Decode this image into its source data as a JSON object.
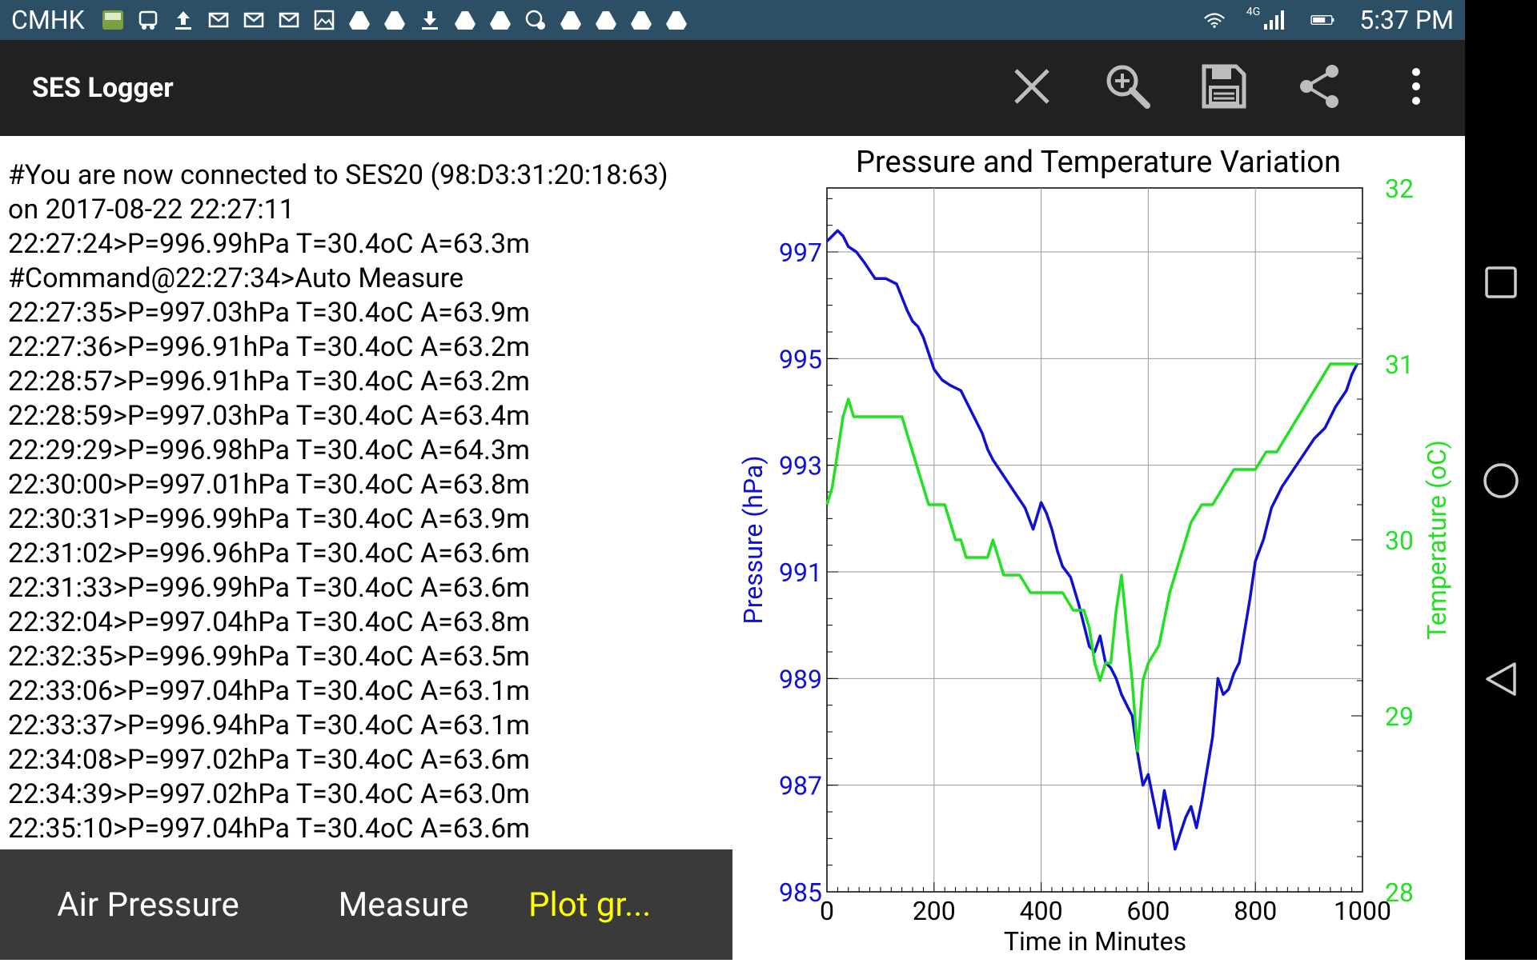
{
  "status_bar": {
    "carrier": "CMHK",
    "time": "5:37 PM",
    "network": "4G",
    "icons": [
      "basic4android-icon",
      "bus-icon",
      "upload-icon",
      "mail-icon",
      "mail-icon",
      "mail-icon",
      "image-icon",
      "drive-icon",
      "drive-icon",
      "download-icon",
      "drive-icon",
      "drive-icon",
      "photos-icon",
      "drive-icon",
      "drive-icon",
      "drive-icon",
      "drive-icon"
    ]
  },
  "app_bar": {
    "title": "SES Logger",
    "actions": [
      "close-icon",
      "zoom-icon",
      "save-icon",
      "share-icon",
      "overflow-menu-icon"
    ]
  },
  "log_lines": [
    "#You are now connected to SES20 (98:D3:31:20:18:63)",
    "on 2017-08-22 22:27:11",
    "22:27:24>P=996.99hPa T=30.4oC A=63.3m",
    "#Command@22:27:34>Auto Measure",
    "22:27:35>P=997.03hPa T=30.4oC A=63.9m",
    "22:27:36>P=996.91hPa T=30.4oC A=63.2m",
    "22:28:57>P=996.91hPa T=30.4oC A=63.2m",
    "22:28:59>P=997.03hPa T=30.4oC A=63.4m",
    "22:29:29>P=996.98hPa T=30.4oC A=64.3m",
    "22:30:00>P=997.01hPa T=30.4oC A=63.8m",
    "22:30:31>P=996.99hPa T=30.4oC A=63.9m",
    "22:31:02>P=996.96hPa T=30.4oC A=63.6m",
    "22:31:33>P=996.99hPa T=30.4oC A=63.6m",
    "22:32:04>P=997.04hPa T=30.4oC A=63.8m",
    "22:32:35>P=996.99hPa T=30.4oC A=63.5m",
    "22:33:06>P=997.04hPa T=30.4oC A=63.1m",
    "22:33:37>P=996.94hPa T=30.4oC A=63.1m",
    "22:34:08>P=997.02hPa T=30.4oC A=63.6m",
    "22:34:39>P=997.02hPa T=30.4oC A=63.0m",
    "22:35:10>P=997.04hPa T=30.4oC A=63.6m"
  ],
  "bottom_nav": {
    "items": [
      "Air Pressure",
      "Measure",
      "Plot gr..."
    ],
    "active_index": 2
  },
  "colors": {
    "pressure": "#1010d0",
    "temperature": "#22e022",
    "active_tab": "#ffff00"
  },
  "chart_data": {
    "type": "line",
    "title": "Pressure and Temperature Variation",
    "xlabel": "Time in Minutes",
    "ylabel": "Pressure (hPa)",
    "y2label": "Temperature (oC)",
    "xlim": [
      0,
      1000
    ],
    "ylim": [
      985,
      998.2
    ],
    "y2lim": [
      28,
      32
    ],
    "x_ticks": [
      0,
      200,
      400,
      600,
      800,
      1000
    ],
    "y_ticks": [
      985,
      987,
      989,
      991,
      993,
      995,
      997
    ],
    "y2_ticks": [
      28,
      29,
      30,
      31,
      32
    ],
    "grid": true,
    "series": [
      {
        "name": "Pressure (hPa)",
        "axis": "left",
        "x": [
          0,
          10,
          20,
          30,
          40,
          55,
          70,
          90,
          110,
          130,
          150,
          160,
          170,
          180,
          190,
          200,
          215,
          230,
          250,
          270,
          290,
          300,
          310,
          330,
          350,
          370,
          385,
          400,
          410,
          420,
          430,
          440,
          455,
          470,
          480,
          490,
          500,
          510,
          520,
          530,
          540,
          550,
          560,
          570,
          580,
          590,
          600,
          610,
          620,
          630,
          640,
          650,
          660,
          670,
          680,
          690,
          700,
          710,
          720,
          730,
          740,
          750,
          760,
          770,
          780,
          790,
          800,
          815,
          830,
          850,
          870,
          890,
          910,
          930,
          950,
          970,
          980,
          990
        ],
        "y": [
          997.2,
          997.3,
          997.4,
          997.3,
          997.1,
          997.0,
          996.8,
          996.5,
          996.5,
          996.4,
          995.9,
          995.7,
          995.6,
          995.4,
          995.1,
          994.8,
          994.6,
          994.5,
          994.4,
          994.0,
          993.6,
          993.3,
          993.1,
          992.8,
          992.5,
          992.2,
          991.8,
          992.3,
          992.1,
          991.8,
          991.4,
          991.1,
          990.9,
          990.4,
          990.0,
          989.6,
          989.5,
          989.8,
          989.3,
          989.2,
          989.0,
          988.7,
          988.5,
          988.3,
          987.6,
          987.0,
          987.2,
          986.7,
          986.2,
          986.9,
          986.4,
          985.8,
          986.1,
          986.4,
          986.6,
          986.2,
          986.7,
          987.3,
          987.9,
          989.0,
          988.7,
          988.8,
          989.1,
          989.3,
          989.9,
          990.5,
          991.2,
          991.6,
          992.2,
          992.6,
          992.9,
          993.2,
          993.5,
          993.7,
          994.1,
          994.4,
          994.7,
          994.9
        ]
      },
      {
        "name": "Temperature (oC)",
        "axis": "right",
        "x": [
          0,
          10,
          20,
          30,
          40,
          50,
          60,
          70,
          80,
          100,
          120,
          140,
          150,
          160,
          170,
          180,
          190,
          200,
          220,
          230,
          240,
          250,
          260,
          270,
          280,
          290,
          300,
          310,
          320,
          330,
          340,
          360,
          380,
          400,
          420,
          440,
          460,
          480,
          490,
          500,
          510,
          520,
          530,
          540,
          550,
          560,
          570,
          575,
          580,
          585,
          590,
          600,
          620,
          640,
          660,
          680,
          700,
          720,
          740,
          760,
          780,
          800,
          820,
          840,
          860,
          880,
          900,
          920,
          940,
          960,
          980,
          990
        ],
        "y": [
          30.2,
          30.3,
          30.5,
          30.7,
          30.8,
          30.7,
          30.7,
          30.7,
          30.7,
          30.7,
          30.7,
          30.7,
          30.6,
          30.5,
          30.4,
          30.3,
          30.2,
          30.2,
          30.2,
          30.1,
          30.0,
          30.0,
          29.9,
          29.9,
          29.9,
          29.9,
          29.9,
          30.0,
          29.9,
          29.8,
          29.8,
          29.8,
          29.7,
          29.7,
          29.7,
          29.7,
          29.6,
          29.6,
          29.5,
          29.3,
          29.2,
          29.3,
          29.3,
          29.6,
          29.8,
          29.5,
          29.2,
          29.0,
          28.8,
          29.0,
          29.2,
          29.3,
          29.4,
          29.7,
          29.9,
          30.1,
          30.2,
          30.2,
          30.3,
          30.4,
          30.4,
          30.4,
          30.5,
          30.5,
          30.6,
          30.7,
          30.8,
          30.9,
          31.0,
          31.0,
          31.0,
          31.0
        ]
      }
    ]
  }
}
